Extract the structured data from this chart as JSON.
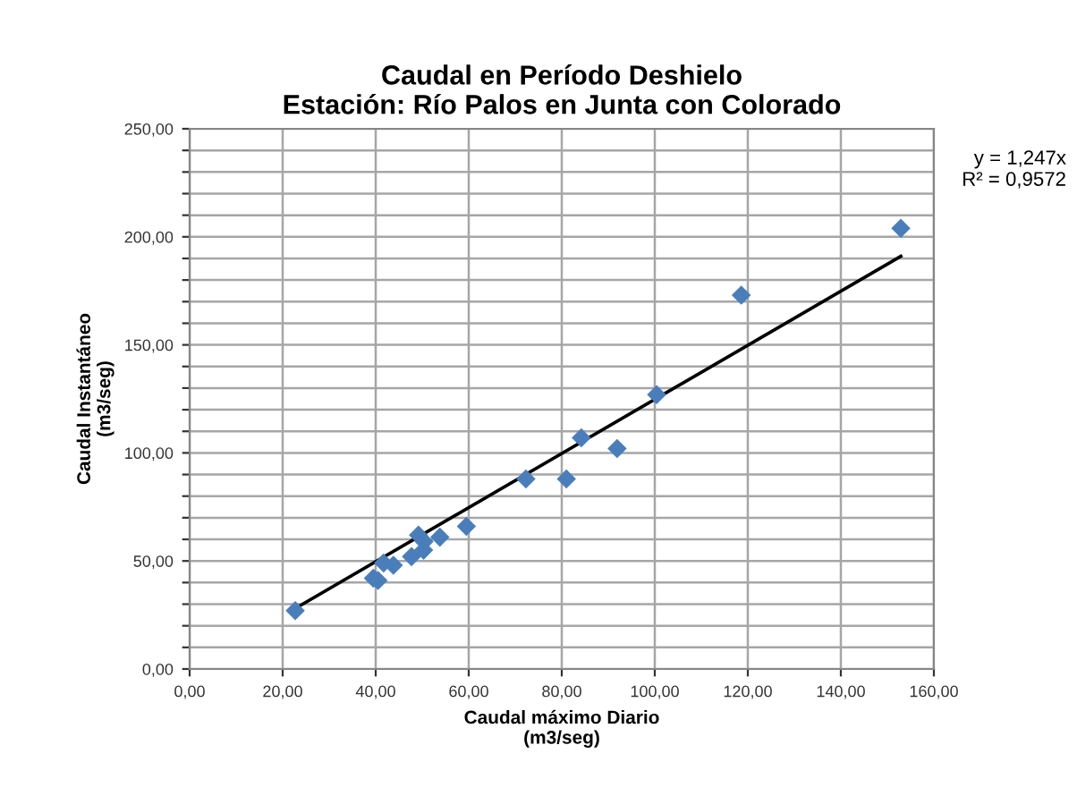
{
  "chart_data": {
    "type": "scatter",
    "title": "Caudal en Período Deshielo\nEstación: Río Palos en Junta con Colorado",
    "xlabel": "Caudal máximo Diario\n(m3/seg)",
    "ylabel": "Caudal Instantáneo\n(m3/seg)",
    "series": [
      {
        "color": "#4a7ebb",
        "marker": "diamond",
        "x": [
          22.7,
          39.5,
          40.5,
          41.7,
          43.8,
          47.7,
          49.2,
          50.3,
          50.4,
          53.8,
          59.5,
          72.3,
          81.0,
          84.2,
          91.9,
          100.4,
          118.6,
          152.9
        ],
        "values": [
          27,
          42,
          41,
          49,
          48,
          52,
          62,
          55,
          59,
          61,
          66,
          88,
          88,
          107,
          102,
          127,
          173,
          204
        ]
      },
      {
        "type": "line",
        "color": "#000000",
        "marker": "none",
        "x": [
          22.7,
          152.9
        ],
        "values": [
          28,
          191
        ]
      }
    ],
    "annotations": [
      "y = 1,247x\nR² = 0,9572"
    ],
    "xlim": [
      0,
      160
    ],
    "xticks": [
      {
        "value": 0,
        "label": "0,00"
      },
      {
        "value": 20,
        "label": "20,00"
      },
      {
        "value": 40,
        "label": "40,00"
      },
      {
        "value": 60,
        "label": "60,00"
      },
      {
        "value": 80,
        "label": "80,00"
      },
      {
        "value": 100,
        "label": "100,00"
      },
      {
        "value": 120,
        "label": "120,00"
      },
      {
        "value": 140,
        "label": "140,00"
      },
      {
        "value": 160,
        "label": "160,00"
      }
    ],
    "ylim": [
      0,
      250
    ],
    "yticks": [
      {
        "value": 0,
        "label": "0,00"
      },
      {
        "value": 10,
        "label": null
      },
      {
        "value": 20,
        "label": null
      },
      {
        "value": 30,
        "label": null
      },
      {
        "value": 40,
        "label": null
      },
      {
        "value": 50,
        "label": "50,00"
      },
      {
        "value": 60,
        "label": null
      },
      {
        "value": 70,
        "label": null
      },
      {
        "value": 80,
        "label": null
      },
      {
        "value": 90,
        "label": null
      },
      {
        "value": 100,
        "label": "100,00"
      },
      {
        "value": 110,
        "label": null
      },
      {
        "value": 120,
        "label": null
      },
      {
        "value": 130,
        "label": null
      },
      {
        "value": 140,
        "label": null
      },
      {
        "value": 150,
        "label": "150,00"
      },
      {
        "value": 160,
        "label": null
      },
      {
        "value": 170,
        "label": null
      },
      {
        "value": 180,
        "label": null
      },
      {
        "value": 190,
        "label": null
      },
      {
        "value": 200,
        "label": "200,00"
      },
      {
        "value": 210,
        "label": null
      },
      {
        "value": 220,
        "label": null
      },
      {
        "value": 230,
        "label": null
      },
      {
        "value": 240,
        "label": null
      },
      {
        "value": 250,
        "label": "250,00"
      }
    ],
    "grid": true
  }
}
